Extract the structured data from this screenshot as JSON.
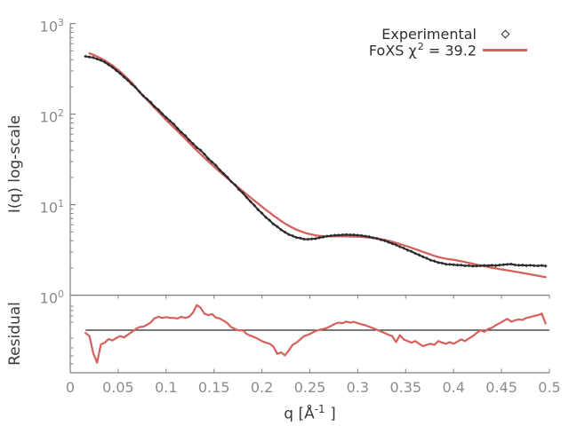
{
  "colors": {
    "experimental": "#2b2b2b",
    "fit": "#d6605c",
    "axis": "#7f7f7f",
    "tick_label": "#8c8c8c",
    "text": "#3a3a3a",
    "residual_baseline": "#2b2b2b"
  },
  "legend": {
    "items": [
      {
        "label": "Experimental",
        "marker": "diamond"
      },
      {
        "label_pre": "FoXS χ",
        "label_sup": "2",
        "label_post": " = 39.2",
        "marker": "line"
      }
    ]
  },
  "axes": {
    "x_label": {
      "pre": "q [Å",
      "sup": "-1",
      "post": " ]"
    },
    "x_ticks": [
      "0",
      "0.05",
      "0.1",
      "0.15",
      "0.2",
      "0.25",
      "0.3",
      "0.35",
      "0.4",
      "0.45",
      "0.5"
    ],
    "y_ticks_main": [
      "10^3",
      "10^2",
      "10^1",
      "10^0"
    ]
  },
  "chart_data": [
    {
      "type": "scatter",
      "title": "",
      "xlabel": "q [Å⁻¹]",
      "ylabel": "I(q) log-scale",
      "yscale": "log",
      "ylim": [
        1,
        1000
      ],
      "xlim": [
        0,
        0.5
      ],
      "grid": false,
      "legend_position": "top-right",
      "x": [
        0.016,
        0.02,
        0.024,
        0.028,
        0.032,
        0.036,
        0.04,
        0.044,
        0.048,
        0.052,
        0.056,
        0.06,
        0.064,
        0.068,
        0.072,
        0.076,
        0.08,
        0.084,
        0.088,
        0.092,
        0.096,
        0.1,
        0.104,
        0.108,
        0.112,
        0.116,
        0.12,
        0.124,
        0.128,
        0.132,
        0.136,
        0.14,
        0.144,
        0.148,
        0.152,
        0.156,
        0.16,
        0.164,
        0.168,
        0.172,
        0.176,
        0.18,
        0.184,
        0.188,
        0.192,
        0.196,
        0.2,
        0.204,
        0.208,
        0.212,
        0.216,
        0.22,
        0.224,
        0.228,
        0.232,
        0.236,
        0.24,
        0.244,
        0.248,
        0.252,
        0.256,
        0.26,
        0.264,
        0.268,
        0.272,
        0.276,
        0.28,
        0.284,
        0.288,
        0.292,
        0.296,
        0.3,
        0.304,
        0.308,
        0.312,
        0.316,
        0.32,
        0.324,
        0.328,
        0.332,
        0.336,
        0.34,
        0.344,
        0.348,
        0.352,
        0.356,
        0.36,
        0.364,
        0.368,
        0.372,
        0.376,
        0.38,
        0.384,
        0.388,
        0.392,
        0.396,
        0.4,
        0.404,
        0.408,
        0.412,
        0.416,
        0.42,
        0.424,
        0.428,
        0.432,
        0.436,
        0.44,
        0.444,
        0.448,
        0.452,
        0.456,
        0.46,
        0.464,
        0.468,
        0.472,
        0.476,
        0.48,
        0.484,
        0.488,
        0.492,
        0.496
      ],
      "series": [
        {
          "name": "Experimental",
          "marker": "diamond",
          "values": [
            435,
            427,
            421,
            406,
            393,
            375,
            352,
            330,
            304,
            282,
            257,
            237,
            215,
            198,
            178,
            160,
            147,
            135,
            121,
            112,
            101,
            92,
            84.5,
            77.5,
            69.5,
            63,
            57.8,
            51.8,
            47.3,
            42.8,
            39.9,
            36.2,
            32.3,
            29.6,
            27.1,
            24.2,
            22.1,
            20.1,
            18.0,
            16.5,
            14.7,
            13.5,
            12.0,
            10.85,
            9.85,
            8.8,
            8.05,
            7.25,
            6.72,
            6.1,
            5.72,
            5.28,
            4.97,
            4.68,
            4.52,
            4.34,
            4.26,
            4.16,
            4.15,
            4.18,
            4.21,
            4.31,
            4.39,
            4.49,
            4.53,
            4.59,
            4.6,
            4.64,
            4.66,
            4.64,
            4.64,
            4.59,
            4.56,
            4.48,
            4.42,
            4.31,
            4.23,
            4.1,
            4.0,
            3.85,
            3.71,
            3.59,
            3.43,
            3.31,
            3.15,
            3.04,
            2.89,
            2.78,
            2.65,
            2.56,
            2.44,
            2.38,
            2.29,
            2.26,
            2.2,
            2.19,
            2.17,
            2.15,
            2.15,
            2.11,
            2.12,
            2.09,
            2.1,
            2.11,
            2.13,
            2.12,
            2.14,
            2.12,
            2.15,
            2.17,
            2.19,
            2.21,
            2.16,
            2.14,
            2.15,
            2.12,
            2.14,
            2.12,
            2.11,
            2.13,
            2.1
          ]
        },
        {
          "name": "FoXS χ2 = 39.2",
          "chi_square": 39.2,
          "marker": "line",
          "values": [
            null,
            470,
            452,
            433,
            413,
            392,
            369,
            345,
            320,
            295,
            270,
            246,
            224,
            200,
            176,
            160,
            144,
            130,
            117,
            106,
            96,
            86,
            78.5,
            71.5,
            65,
            59,
            53.5,
            48.3,
            43.8,
            39.7,
            36.2,
            33.0,
            30.1,
            27.5,
            25.2,
            23.1,
            21.2,
            19.55,
            18.0,
            16.6,
            15.3,
            14.1,
            13.0,
            12.0,
            11.1,
            10.3,
            9.5,
            8.8,
            8.2,
            7.6,
            7.1,
            6.6,
            6.2,
            5.85,
            5.55,
            5.3,
            5.1,
            4.92,
            4.78,
            4.67,
            4.58,
            4.52,
            4.49,
            4.48,
            4.48,
            4.48,
            4.48,
            4.47,
            4.46,
            4.45,
            4.44,
            4.43,
            4.41,
            4.38,
            4.34,
            4.29,
            4.23,
            4.16,
            4.08,
            3.99,
            3.89,
            3.78,
            3.67,
            3.56,
            3.45,
            3.34,
            3.23,
            3.12,
            3.01,
            2.91,
            2.81,
            2.72,
            2.64,
            2.58,
            2.53,
            2.49,
            2.46,
            2.42,
            2.37,
            2.32,
            2.27,
            2.22,
            2.17,
            2.13,
            2.09,
            2.05,
            2.01,
            1.98,
            1.94,
            1.91,
            1.88,
            1.85,
            1.82,
            1.79,
            1.76,
            1.73,
            1.7,
            1.67,
            1.64,
            1.61,
            1.58
          ]
        }
      ]
    },
    {
      "type": "line",
      "title": "",
      "ylabel": "Residual",
      "yscale": "log",
      "baseline": 1.0,
      "xlim": [
        0,
        0.5
      ],
      "x_same_as_main": true,
      "series": [
        {
          "name": "Residual",
          "values": [
            0.93,
            0.86,
            0.56,
            0.44,
            0.7,
            0.73,
            0.8,
            0.77,
            0.82,
            0.86,
            0.83,
            0.89,
            0.95,
            1.02,
            1.08,
            1.09,
            1.14,
            1.22,
            1.35,
            1.4,
            1.36,
            1.39,
            1.36,
            1.36,
            1.34,
            1.4,
            1.36,
            1.4,
            1.55,
            1.88,
            1.76,
            1.52,
            1.46,
            1.5,
            1.37,
            1.34,
            1.27,
            1.19,
            1.08,
            1.03,
            0.99,
            1.0,
            0.91,
            0.87,
            0.84,
            0.8,
            0.76,
            0.73,
            0.71,
            0.66,
            0.55,
            0.57,
            0.53,
            0.6,
            0.69,
            0.73,
            0.79,
            0.86,
            0.89,
            0.93,
            0.98,
            1.01,
            1.03,
            1.06,
            1.11,
            1.17,
            1.21,
            1.19,
            1.24,
            1.21,
            1.23,
            1.19,
            1.16,
            1.13,
            1.09,
            1.05,
            1.01,
            0.97,
            0.93,
            0.89,
            0.86,
            0.74,
            0.88,
            0.79,
            0.76,
            0.73,
            0.76,
            0.71,
            0.67,
            0.69,
            0.71,
            0.69,
            0.76,
            0.73,
            0.71,
            0.74,
            0.71,
            0.75,
            0.79,
            0.76,
            0.81,
            0.86,
            0.93,
            1.0,
            0.96,
            1.03,
            1.06,
            1.13,
            1.19,
            1.26,
            1.33,
            1.24,
            1.28,
            1.31,
            1.29,
            1.36,
            1.39,
            1.43,
            1.46,
            1.52,
            1.18
          ]
        }
      ]
    }
  ]
}
